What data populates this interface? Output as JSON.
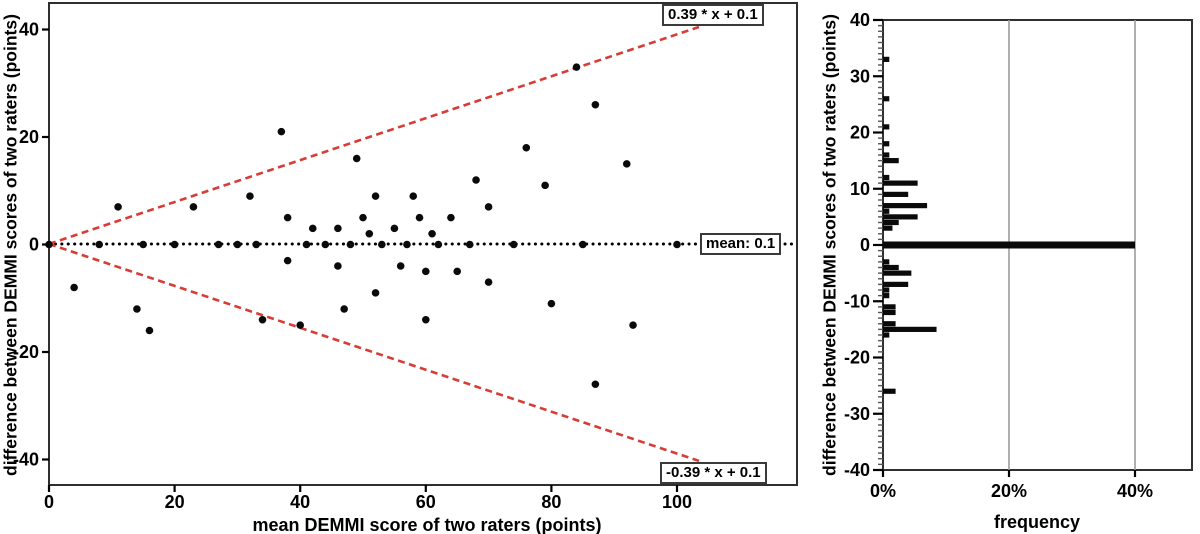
{
  "colors": {
    "limit_line_red": "#d73c37",
    "mean_line_black": "#000000",
    "point_black": "#0a0a0a",
    "bar_black": "#0a0a0a",
    "gridline_gray": "#9c9c9c",
    "axis_frame": "#2f2f2f",
    "minor_tick": "#555555",
    "background": "#ffffff"
  },
  "chart_data": [
    {
      "type": "scatter",
      "name": "bland-altman-plot",
      "xlabel": "mean DEMMI score of two raters (points)",
      "ylabel": "difference between DEMMI scores of two raters (points)",
      "x_ticks": [
        0,
        20,
        40,
        60,
        80,
        100
      ],
      "y_ticks": [
        40,
        20,
        0,
        -20,
        -40
      ],
      "xlim": [
        0,
        119
      ],
      "ylim": [
        -45,
        45
      ],
      "grid": false,
      "mean_value": 0.1,
      "mean_label": "mean: 0.1",
      "upper_limit_label": "0.39 * x + 0.1",
      "lower_limit_label": "-0.39 * x + 0.1",
      "upper_limit": {
        "slope": 0.39,
        "intercept": 0.1
      },
      "lower_limit": {
        "slope": -0.39,
        "intercept": 0.1
      },
      "limit_line_x_end": 103.5,
      "points": [
        [
          0,
          0
        ],
        [
          8,
          0
        ],
        [
          15,
          0
        ],
        [
          20,
          0
        ],
        [
          27,
          0
        ],
        [
          30,
          0
        ],
        [
          33,
          0
        ],
        [
          41,
          0
        ],
        [
          44,
          0
        ],
        [
          48,
          0
        ],
        [
          53,
          0
        ],
        [
          57,
          0
        ],
        [
          62,
          0
        ],
        [
          67,
          0
        ],
        [
          74,
          0
        ],
        [
          85,
          0
        ],
        [
          100,
          0
        ],
        [
          11,
          7
        ],
        [
          23,
          7
        ],
        [
          32,
          9
        ],
        [
          37,
          21
        ],
        [
          38,
          5
        ],
        [
          42,
          3
        ],
        [
          46,
          3
        ],
        [
          49,
          16
        ],
        [
          50,
          5
        ],
        [
          51,
          2
        ],
        [
          52,
          9
        ],
        [
          55,
          3
        ],
        [
          58,
          9
        ],
        [
          59,
          5
        ],
        [
          61,
          2
        ],
        [
          64,
          5
        ],
        [
          68,
          12
        ],
        [
          70,
          7
        ],
        [
          76,
          18
        ],
        [
          79,
          11
        ],
        [
          84,
          33
        ],
        [
          87,
          26
        ],
        [
          92,
          15
        ],
        [
          4,
          -8
        ],
        [
          14,
          -12
        ],
        [
          16,
          -16
        ],
        [
          34,
          -14
        ],
        [
          38,
          -3
        ],
        [
          40,
          -15
        ],
        [
          46,
          -4
        ],
        [
          47,
          -12
        ],
        [
          52,
          -9
        ],
        [
          56,
          -4
        ],
        [
          60,
          -5
        ],
        [
          60,
          -14
        ],
        [
          65,
          -5
        ],
        [
          70,
          -7
        ],
        [
          80,
          -11
        ],
        [
          87,
          -26
        ],
        [
          93,
          -15
        ]
      ]
    },
    {
      "type": "bar",
      "name": "difference-frequency-histogram",
      "orientation": "horizontal",
      "xlabel": "frequency",
      "ylabel": "difference between DEMMI scores of two raters (points)",
      "x_ticks": [
        {
          "value": 0,
          "label": "0%"
        },
        {
          "value": 20,
          "label": "20%"
        },
        {
          "value": 40,
          "label": "40%"
        }
      ],
      "y_major_ticks": [
        40,
        30,
        20,
        10,
        0,
        -10,
        -20,
        -30,
        -40
      ],
      "y_minor_tick_step": 1,
      "gridlines_percent": [
        20,
        40
      ],
      "xlim": [
        0,
        49
      ],
      "ylim": [
        -40,
        40
      ],
      "bars": [
        {
          "diff": 33,
          "pct": 1
        },
        {
          "diff": 26,
          "pct": 1
        },
        {
          "diff": 21,
          "pct": 1
        },
        {
          "diff": 18,
          "pct": 1
        },
        {
          "diff": 16,
          "pct": 1
        },
        {
          "diff": 15,
          "pct": 2.5
        },
        {
          "diff": 12,
          "pct": 1
        },
        {
          "diff": 11,
          "pct": 5.5
        },
        {
          "diff": 9,
          "pct": 4
        },
        {
          "diff": 7,
          "pct": 7
        },
        {
          "diff": 6,
          "pct": 1
        },
        {
          "diff": 5,
          "pct": 5.5
        },
        {
          "diff": 4,
          "pct": 2.5
        },
        {
          "diff": 3,
          "pct": 1.5
        },
        {
          "diff": 0,
          "pct": 40
        },
        {
          "diff": -3,
          "pct": 1
        },
        {
          "diff": -4,
          "pct": 2.5
        },
        {
          "diff": -5,
          "pct": 4.5
        },
        {
          "diff": -7,
          "pct": 4
        },
        {
          "diff": -8,
          "pct": 1
        },
        {
          "diff": -9,
          "pct": 1
        },
        {
          "diff": -11,
          "pct": 2
        },
        {
          "diff": -12,
          "pct": 2
        },
        {
          "diff": -14,
          "pct": 2
        },
        {
          "diff": -15,
          "pct": 8.5
        },
        {
          "diff": -16,
          "pct": 1
        },
        {
          "diff": -26,
          "pct": 2
        }
      ]
    }
  ]
}
